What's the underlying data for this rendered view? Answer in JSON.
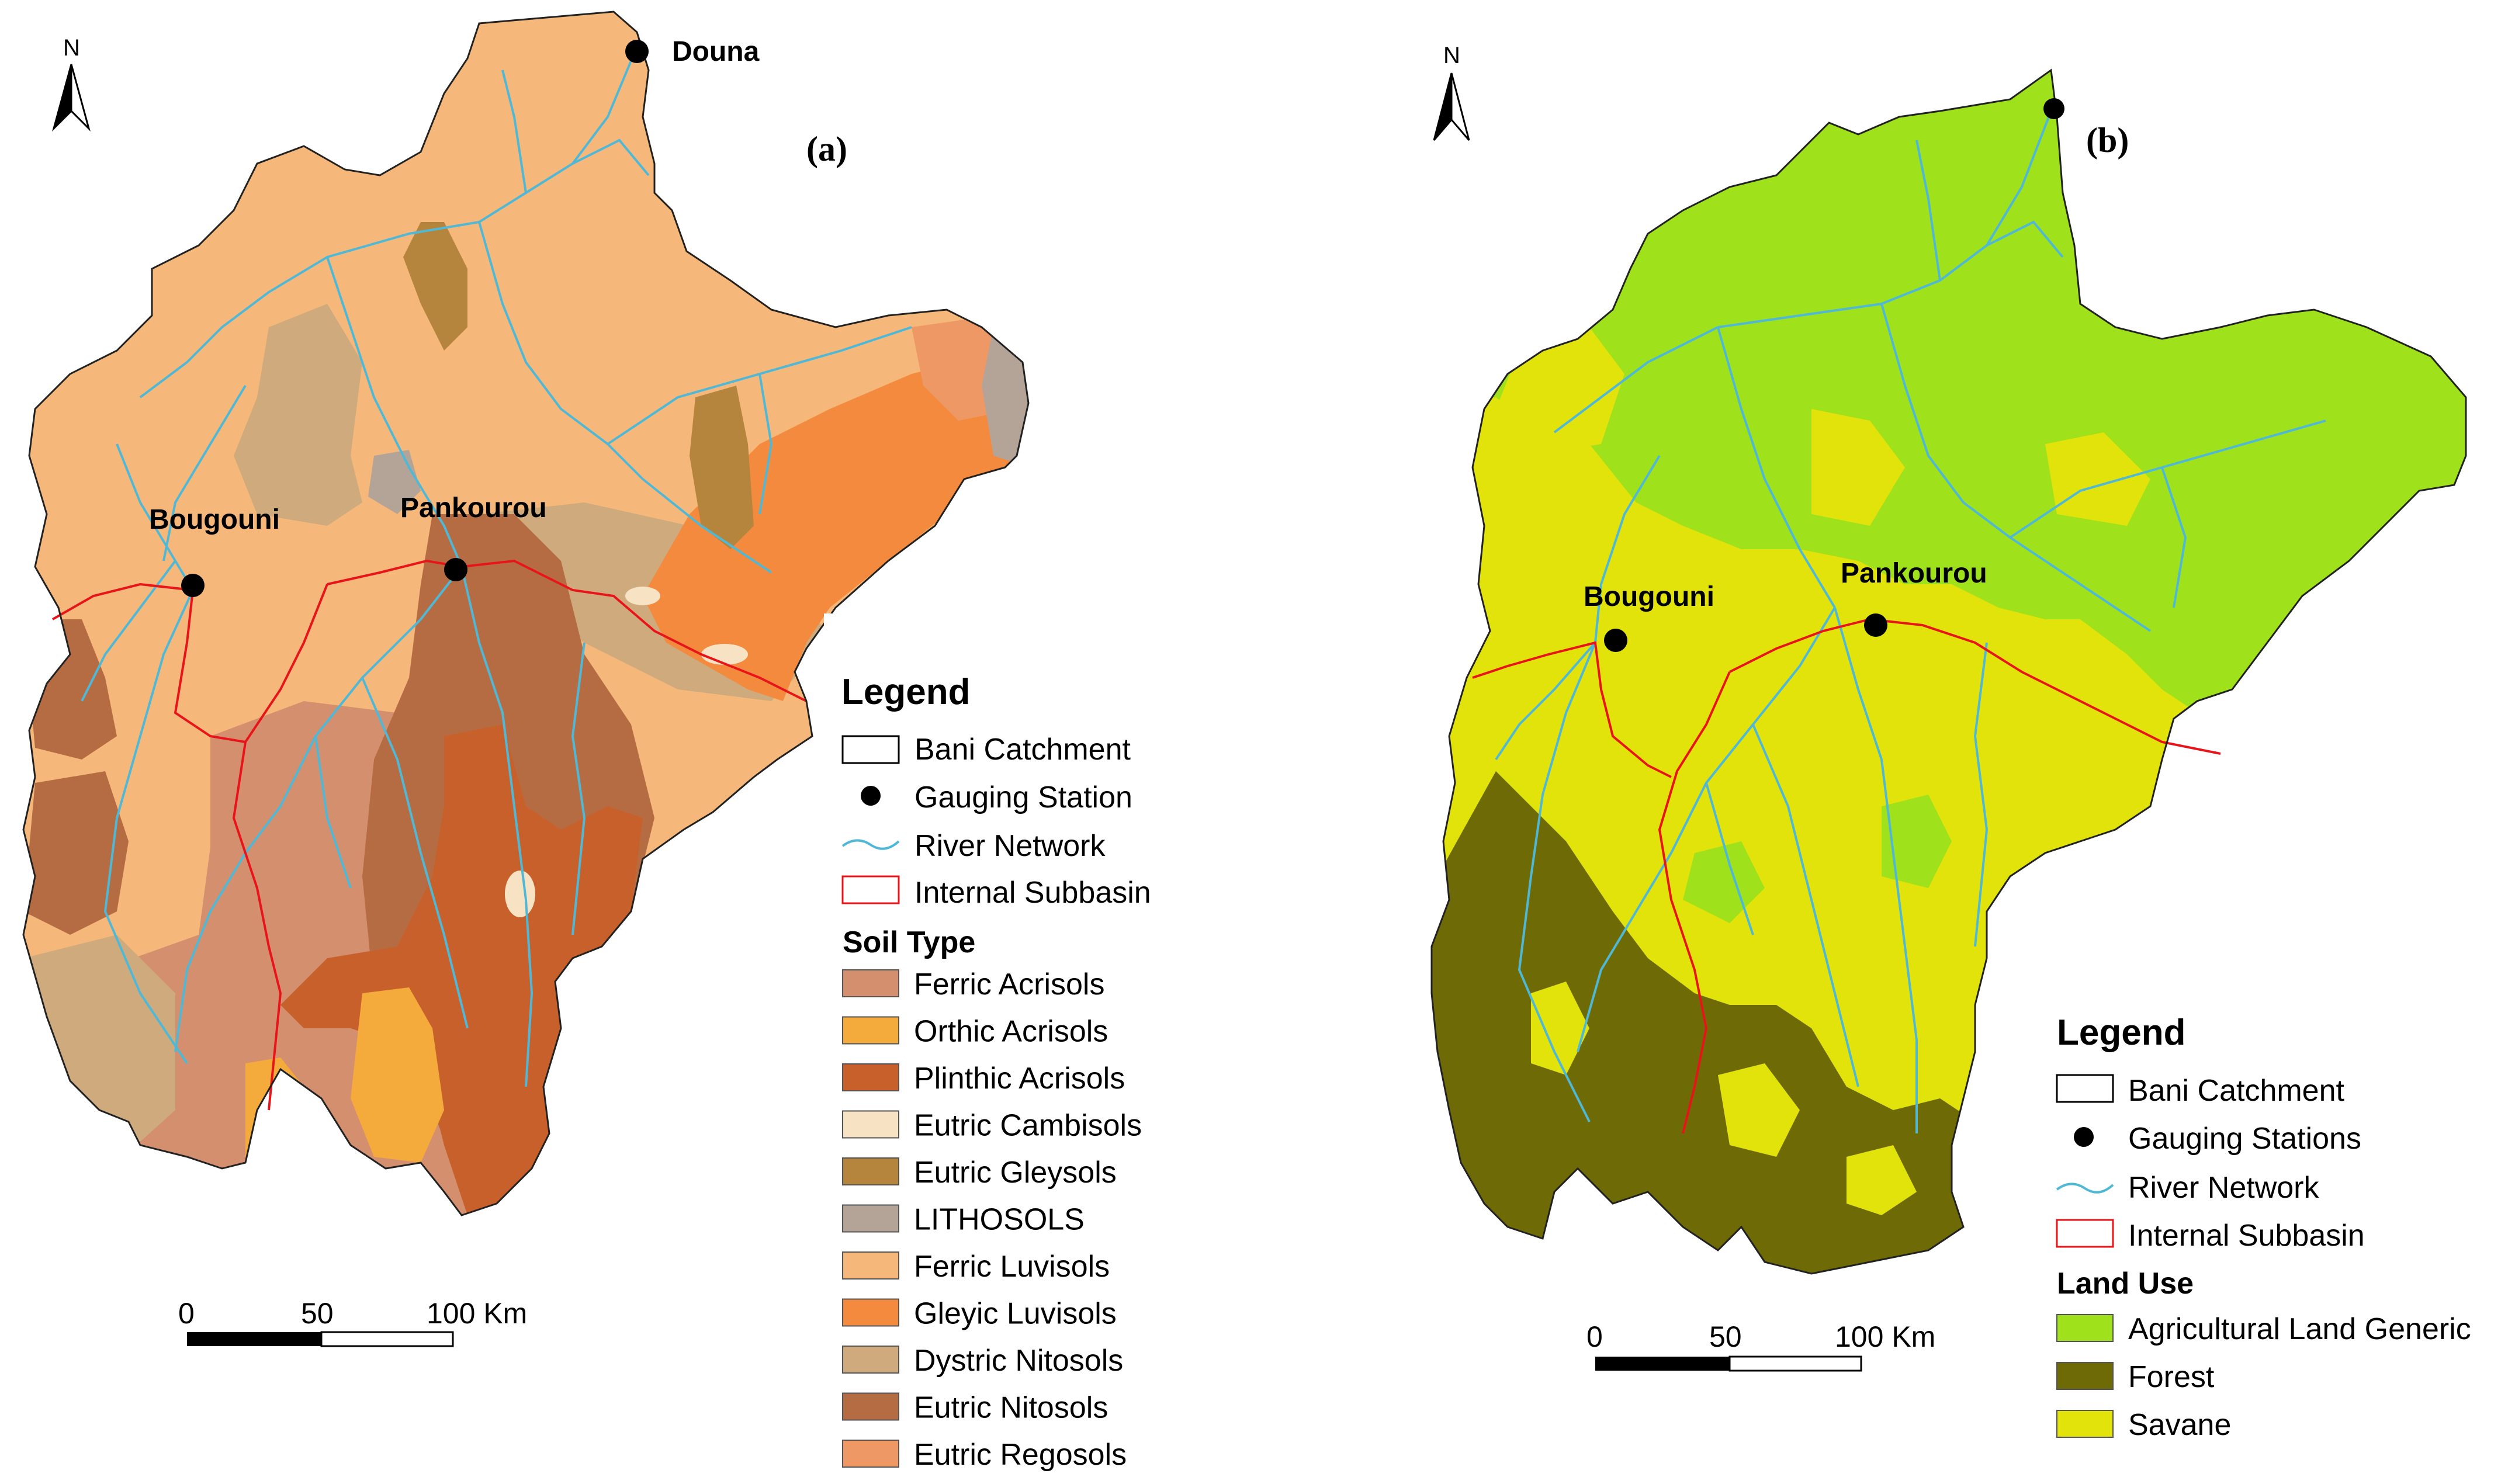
{
  "panel_a": {
    "label": "(a)",
    "places": [
      "Douna",
      "Bougouni",
      "Pankourou"
    ],
    "legend": {
      "title": "Legend",
      "items": [
        "Bani Catchment",
        "Gauging Station",
        "River Network",
        "Internal Subbasin"
      ],
      "soil_title": "Soil Type",
      "soils": [
        {
          "name": "Ferric Acrisols",
          "color": "#d4906e"
        },
        {
          "name": "Orthic Acrisols",
          "color": "#f5ab3c"
        },
        {
          "name": "Plinthic Acrisols",
          "color": "#c8602c"
        },
        {
          "name": "Eutric Cambisols",
          "color": "#f7e2c4"
        },
        {
          "name": "Eutric Gleysols",
          "color": "#b5853e"
        },
        {
          "name": "LITHOSOLS",
          "color": "#b3a497"
        },
        {
          "name": "Ferric Luvisols",
          "color": "#f6b87a"
        },
        {
          "name": "Gleyic Luvisols",
          "color": "#f48a3d"
        },
        {
          "name": "Dystric Nitosols",
          "color": "#cfaa7c"
        },
        {
          "name": "Eutric Nitosols",
          "color": "#b56c42"
        },
        {
          "name": "Eutric Regosols",
          "color": "#ee9865"
        }
      ]
    },
    "scale": [
      "0",
      "50",
      "100 Km"
    ],
    "north": "N"
  },
  "panel_b": {
    "label": "(b)",
    "places": [
      "Bougouni",
      "Pankourou"
    ],
    "legend": {
      "title": "Legend",
      "items": [
        "Bani Catchment",
        "Gauging Stations",
        "River Network",
        "Internal Subbasin"
      ],
      "landuse_title": "Land Use",
      "landuse": [
        {
          "name": "Agricultural Land Generic",
          "color": "#9fe11a"
        },
        {
          "name": "Forest",
          "color": "#6e6a05"
        },
        {
          "name": "Savane",
          "color": "#e1e30a"
        }
      ]
    },
    "scale": [
      "0",
      "50",
      "100 Km"
    ],
    "north": "N"
  },
  "colors": {
    "river": "#4fb8d6",
    "subbasin": "#e8141a",
    "outline": "#222222"
  }
}
